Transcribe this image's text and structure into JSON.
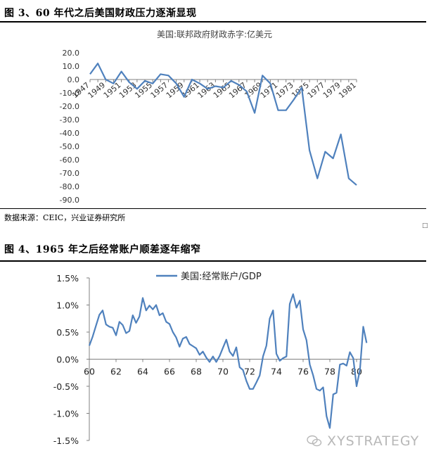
{
  "fig3": {
    "title": "图 3、60 年代之后美国财政压力逐渐显现",
    "source": "数据来源：CEIC，兴业证券研究所"
  },
  "fig4": {
    "title": "图 4、1965 年之后经常账户顺差逐年缩窄"
  },
  "watermark": {
    "text": "XYSTRATEGY",
    "icon": "wechat-icon"
  },
  "corner_mark": "□",
  "colors": {
    "line": "#4F81BD",
    "grid": "#d9d9d9",
    "axis": "#808080"
  },
  "chart_data": [
    {
      "type": "line",
      "title": "美国:联邦政府财政赤字:亿美元",
      "x": [
        1947,
        1948,
        1949,
        1950,
        1951,
        1952,
        1953,
        1954,
        1955,
        1956,
        1957,
        1958,
        1959,
        1960,
        1961,
        1962,
        1963,
        1964,
        1965,
        1966,
        1967,
        1968,
        1969,
        1970,
        1971,
        1972,
        1973,
        1974,
        1975,
        1976,
        1977,
        1978,
        1979,
        1980,
        1981
      ],
      "y": [
        4,
        12,
        0,
        -3,
        6,
        -2,
        -7,
        -1,
        -3,
        4,
        3,
        -3,
        -13,
        0,
        -3,
        -7,
        -5,
        -6,
        -1,
        -4,
        -9,
        -25,
        3,
        -3,
        -23,
        -23,
        -15,
        -6,
        -53,
        -74,
        -54,
        -59,
        -41,
        -74,
        -79
      ],
      "xticks": [
        "1947",
        "1949",
        "1951",
        "1953",
        "1955",
        "1957",
        "1959",
        "1961",
        "1963",
        "1965",
        "1967",
        "1969",
        "1971",
        "1973",
        "1975",
        "1977",
        "1979",
        "1981"
      ],
      "yticks": [
        "20.0",
        "10.0",
        "0.0",
        "-10.0",
        "-20.0",
        "-30.0",
        "-40.0",
        "-50.0",
        "-60.0",
        "-70.0",
        "-80.0",
        "-90.0"
      ],
      "ylim": [
        -90,
        20
      ],
      "grid": false,
      "legend": "none"
    },
    {
      "type": "line",
      "series_name": "美国:经常账户/GDP",
      "xlim": [
        60,
        81
      ],
      "x": [
        60.0,
        60.25,
        60.5,
        60.75,
        61.0,
        61.25,
        61.5,
        61.75,
        62.0,
        62.25,
        62.5,
        62.75,
        63.0,
        63.25,
        63.5,
        63.75,
        64.0,
        64.25,
        64.5,
        64.75,
        65.0,
        65.25,
        65.5,
        65.75,
        66.0,
        66.25,
        66.5,
        66.75,
        67.0,
        67.25,
        67.5,
        67.75,
        68.0,
        68.25,
        68.5,
        68.75,
        69.0,
        69.25,
        69.5,
        69.75,
        70.0,
        70.25,
        70.5,
        70.75,
        71.0,
        71.25,
        71.5,
        71.75,
        72.0,
        72.25,
        72.5,
        72.75,
        73.0,
        73.25,
        73.5,
        73.75,
        74.0,
        74.25,
        74.5,
        74.75,
        75.0,
        75.25,
        75.5,
        75.75,
        76.0,
        76.25,
        76.5,
        76.75,
        77.0,
        77.25,
        77.5,
        77.75,
        78.0,
        78.25,
        78.5,
        78.75,
        79.0,
        79.25,
        79.5,
        79.75,
        80.0,
        80.25,
        80.5,
        80.75
      ],
      "y": [
        0.25,
        0.42,
        0.62,
        0.82,
        0.9,
        0.64,
        0.6,
        0.58,
        0.44,
        0.69,
        0.63,
        0.48,
        0.52,
        0.81,
        0.67,
        0.79,
        1.13,
        0.9,
        0.99,
        0.92,
        1.0,
        0.81,
        0.85,
        0.69,
        0.65,
        0.5,
        0.4,
        0.23,
        0.38,
        0.41,
        0.28,
        0.24,
        0.2,
        0.08,
        0.14,
        0.03,
        -0.05,
        0.05,
        -0.05,
        0.06,
        0.21,
        0.36,
        0.14,
        0.06,
        0.22,
        -0.15,
        -0.2,
        -0.4,
        -0.55,
        -0.55,
        -0.43,
        -0.3,
        0.05,
        0.25,
        0.75,
        0.9,
        0.1,
        -0.03,
        0.02,
        0.05,
        1.02,
        1.2,
        0.95,
        1.08,
        0.55,
        0.35,
        -0.1,
        -0.3,
        -0.55,
        -0.58,
        -0.52,
        -1.05,
        -1.27,
        -0.65,
        -0.62,
        -0.1,
        -0.08,
        -0.12,
        0.13,
        0.02,
        -0.5,
        -0.2,
        0.6,
        0.3
      ],
      "xticks": [
        "60",
        "62",
        "64",
        "66",
        "68",
        "70",
        "72",
        "74",
        "76",
        "78",
        "80"
      ],
      "yticks": [
        "1.5%",
        "1.0%",
        "0.5%",
        "0.0%",
        "-0.5%",
        "-1.0%",
        "-1.5%"
      ],
      "ylim": [
        -1.5,
        1.5
      ],
      "grid": false,
      "legend": "top"
    }
  ]
}
